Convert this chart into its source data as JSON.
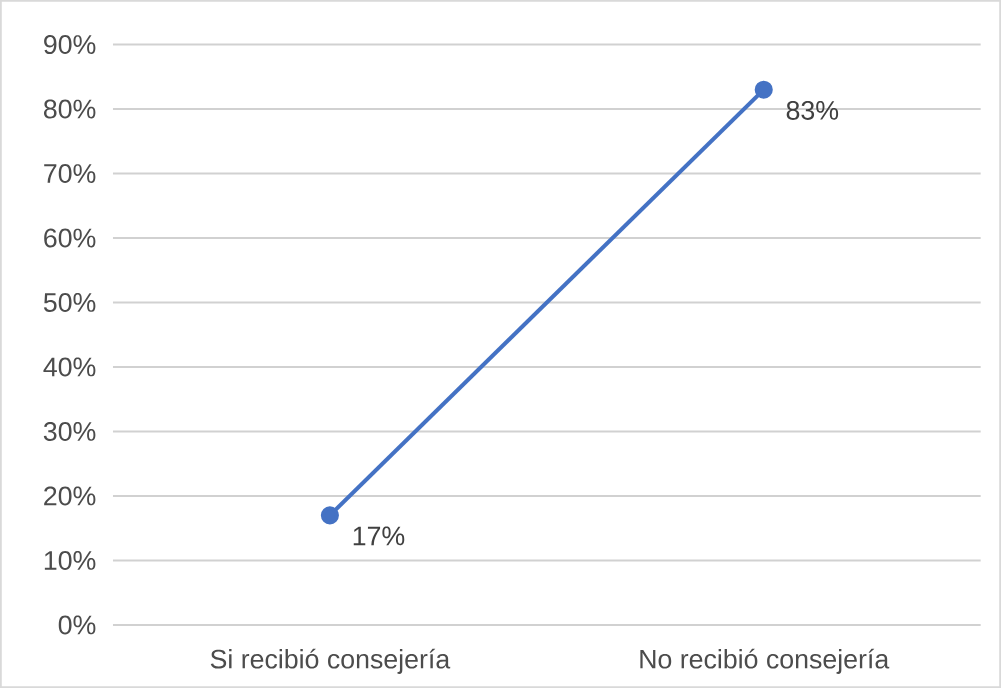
{
  "chart_data": {
    "type": "line",
    "categories": [
      "Si recibió consejería",
      "No recibió consejería"
    ],
    "values": [
      17,
      83
    ],
    "value_labels": [
      "17%",
      "83%"
    ],
    "color": "#4472c4",
    "marker": "circle",
    "ylim": [
      0,
      90
    ],
    "yticks": [
      {
        "value": 0,
        "label": "0%"
      },
      {
        "value": 10,
        "label": "10%"
      },
      {
        "value": 20,
        "label": "20%"
      },
      {
        "value": 30,
        "label": "30%"
      },
      {
        "value": 40,
        "label": "40%"
      },
      {
        "value": 50,
        "label": "50%"
      },
      {
        "value": 60,
        "label": "60%"
      },
      {
        "value": 70,
        "label": "70%"
      },
      {
        "value": 80,
        "label": "80%"
      },
      {
        "value": 90,
        "label": "90%"
      }
    ],
    "grid": "y"
  }
}
